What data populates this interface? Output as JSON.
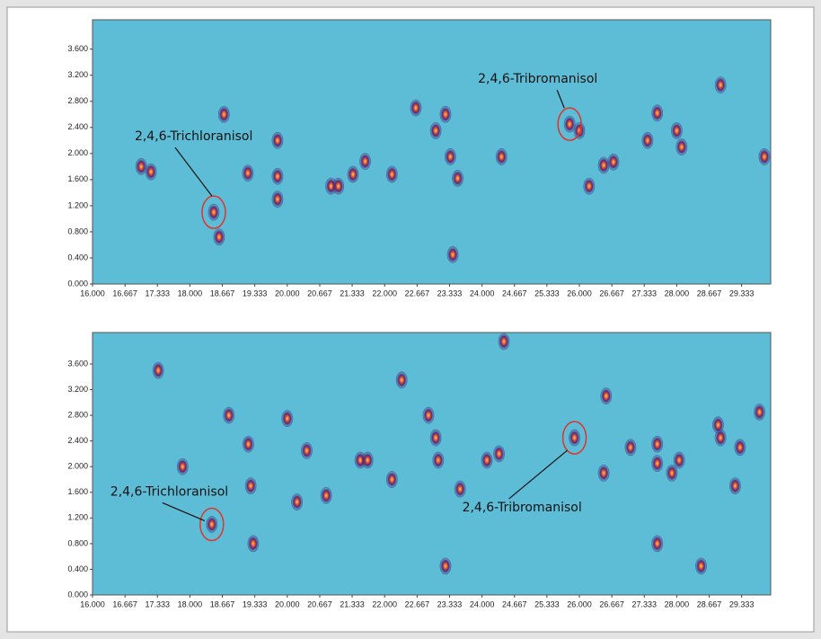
{
  "chart_data": [
    {
      "type": "scatter",
      "xlim": [
        16,
        29.93
      ],
      "ylim": [
        0,
        4.05
      ],
      "xticks": [
        {
          "value": 16,
          "label": "16.000"
        },
        {
          "value": 16.667,
          "label": "16.667"
        },
        {
          "value": 17.333,
          "label": "17.333"
        },
        {
          "value": 18,
          "label": "18.000"
        },
        {
          "value": 18.667,
          "label": "18.667"
        },
        {
          "value": 19.333,
          "label": "19.333"
        },
        {
          "value": 20,
          "label": "20.000"
        },
        {
          "value": 20.667,
          "label": "20.667"
        },
        {
          "value": 21.333,
          "label": "21.333"
        },
        {
          "value": 22,
          "label": "22.000"
        },
        {
          "value": 22.667,
          "label": "22.667"
        },
        {
          "value": 23.333,
          "label": "23.333"
        },
        {
          "value": 24,
          "label": "24.000"
        },
        {
          "value": 24.667,
          "label": "24.667"
        },
        {
          "value": 25.333,
          "label": "25.333"
        },
        {
          "value": 26,
          "label": "26.000"
        },
        {
          "value": 26.667,
          "label": "26.667"
        },
        {
          "value": 27.333,
          "label": "27.333"
        },
        {
          "value": 28,
          "label": "28.000"
        },
        {
          "value": 28.667,
          "label": "28.667"
        },
        {
          "value": 29.333,
          "label": "29.333"
        }
      ],
      "yticks": [
        {
          "value": 0,
          "label": "0.000"
        },
        {
          "value": 0.4,
          "label": "0.400"
        },
        {
          "value": 0.8,
          "label": "0.800"
        },
        {
          "value": 1.2,
          "label": "1.200"
        },
        {
          "value": 1.6,
          "label": "1.600"
        },
        {
          "value": 2,
          "label": "2.000"
        },
        {
          "value": 2.4,
          "label": "2.400"
        },
        {
          "value": 2.8,
          "label": "2.800"
        },
        {
          "value": 3.2,
          "label": "3.200"
        },
        {
          "value": 3.6,
          "label": "3.600"
        }
      ],
      "plot_color": "#5dbdd7",
      "color": "#3b2470",
      "x": [
        18.49,
        19.19,
        17.0,
        17.2,
        18.6,
        18.7,
        19.8,
        19.8,
        19.8,
        20.9,
        21.05,
        21.35,
        21.6,
        22.15,
        22.64,
        23.05,
        23.25,
        23.5,
        23.35,
        24.4,
        23.4,
        25.8,
        26.0,
        26.2,
        26.5,
        26.7,
        27.4,
        27.6,
        28.1,
        28.0,
        28.9,
        29.8
      ],
      "y": [
        1.1,
        1.7,
        1.8,
        1.72,
        0.72,
        2.6,
        1.3,
        1.65,
        2.2,
        1.5,
        1.5,
        1.68,
        1.88,
        1.68,
        2.7,
        2.35,
        2.6,
        1.62,
        1.95,
        1.95,
        0.45,
        2.45,
        2.35,
        1.5,
        1.82,
        1.87,
        2.2,
        2.62,
        2.1,
        2.35,
        3.05,
        1.95
      ],
      "annotations": [
        {
          "text": "2,4,6-Trichloranisol",
          "x": 18.49,
          "y": 1.1
        },
        {
          "text": "2,4,6-Tribromanisol",
          "x": 25.8,
          "y": 2.45
        }
      ]
    },
    {
      "type": "scatter",
      "xlim": [
        16,
        29.93
      ],
      "ylim": [
        0,
        4.09
      ],
      "xticks": [
        {
          "value": 16,
          "label": "16.000"
        },
        {
          "value": 16.667,
          "label": "16.667"
        },
        {
          "value": 17.333,
          "label": "17.333"
        },
        {
          "value": 18,
          "label": "18.000"
        },
        {
          "value": 18.667,
          "label": "18.667"
        },
        {
          "value": 19.333,
          "label": "19.333"
        },
        {
          "value": 20,
          "label": "20.000"
        },
        {
          "value": 20.667,
          "label": "20.667"
        },
        {
          "value": 21.333,
          "label": "21.333"
        },
        {
          "value": 22,
          "label": "22.000"
        },
        {
          "value": 22.667,
          "label": "22.667"
        },
        {
          "value": 23.333,
          "label": "23.333"
        },
        {
          "value": 24,
          "label": "24.000"
        },
        {
          "value": 24.667,
          "label": "24.667"
        },
        {
          "value": 25.333,
          "label": "25.333"
        },
        {
          "value": 26,
          "label": "26.000"
        },
        {
          "value": 26.667,
          "label": "26.667"
        },
        {
          "value": 27.333,
          "label": "27.333"
        },
        {
          "value": 28,
          "label": "28.000"
        },
        {
          "value": 28.667,
          "label": "28.667"
        },
        {
          "value": 29.333,
          "label": "29.333"
        }
      ],
      "yticks": [
        {
          "value": 0,
          "label": "0.000"
        },
        {
          "value": 0.4,
          "label": "0.400"
        },
        {
          "value": 0.8,
          "label": "0.800"
        },
        {
          "value": 1.2,
          "label": "1.200"
        },
        {
          "value": 1.6,
          "label": "1.600"
        },
        {
          "value": 2,
          "label": "2.000"
        },
        {
          "value": 2.4,
          "label": "2.400"
        },
        {
          "value": 2.8,
          "label": "2.800"
        },
        {
          "value": 3.2,
          "label": "3.200"
        },
        {
          "value": 3.6,
          "label": "3.600"
        }
      ],
      "plot_color": "#5dbdd7",
      "color": "#3b2470",
      "x": [
        18.45,
        19.25,
        19.2,
        18.8,
        19.3,
        17.35,
        17.85,
        20.0,
        20.4,
        20.2,
        20.8,
        21.5,
        21.65,
        22.15,
        22.35,
        22.9,
        23.05,
        23.1,
        23.55,
        23.25,
        24.1,
        24.35,
        24.45,
        25.9,
        26.55,
        26.5,
        27.05,
        27.6,
        27.6,
        28.05,
        27.9,
        28.5,
        28.85,
        28.9,
        29.2,
        29.7,
        29.3,
        27.6
      ],
      "y": [
        1.1,
        1.7,
        2.35,
        2.8,
        0.8,
        3.5,
        2.0,
        2.75,
        2.25,
        1.45,
        1.55,
        2.1,
        2.1,
        1.8,
        3.35,
        2.8,
        2.45,
        2.1,
        1.65,
        0.45,
        2.1,
        2.2,
        3.95,
        2.45,
        3.1,
        1.9,
        2.3,
        2.35,
        2.05,
        2.1,
        1.9,
        0.45,
        2.65,
        2.45,
        1.7,
        2.85,
        2.3,
        0.8
      ],
      "annotations": [
        {
          "text": "2,4,6-Trichloranisol",
          "x": 18.45,
          "y": 1.1
        },
        {
          "text": "2,4,6-Tribromanisol",
          "x": 25.9,
          "y": 2.45
        }
      ]
    }
  ]
}
